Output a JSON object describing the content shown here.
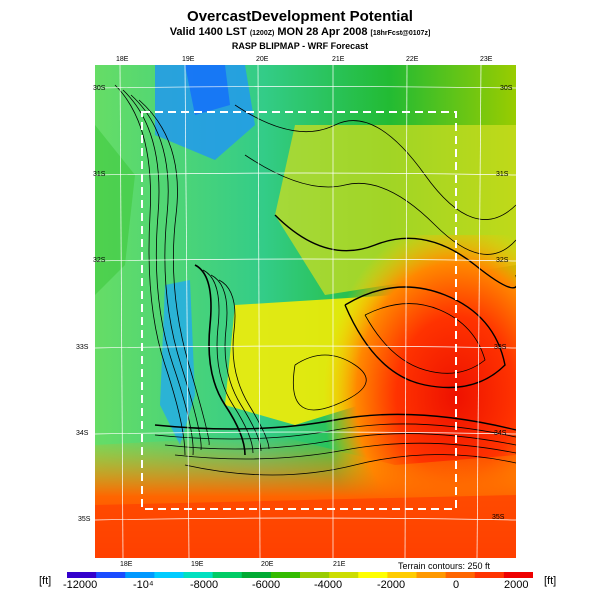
{
  "title": "OvercastDevelopment Potential",
  "subtitle_main": "Valid 1400 LST",
  "subtitle_utc": "(1200Z)",
  "subtitle_date": "MON 28 Apr 2008",
  "subtitle_fcst": "[18hrFcst@0107z]",
  "model_line": "RASP BLIPMAP - WRF Forecast",
  "top_lon_labels": [
    "18E",
    "19E",
    "20E",
    "21E",
    "22E",
    "23E"
  ],
  "bottom_lon_labels": [
    "18E",
    "19E",
    "20E",
    "21E"
  ],
  "left_lat_labels": [
    "30S",
    "31S",
    "32S",
    "33S",
    "34S",
    "35S"
  ],
  "right_lat_labels": [
    "30S",
    "31S",
    "32S",
    "33S",
    "34S",
    "35S"
  ],
  "legend": {
    "unit_left": "[ft]",
    "unit_right": "[ft]",
    "ticks": [
      "-12000",
      "-10⁴",
      "-8000",
      "-6000",
      "-4000",
      "-2000",
      "0",
      "2000"
    ],
    "colors": [
      "#3300cc",
      "#1a4cff",
      "#0099ff",
      "#00ccff",
      "#00e0c0",
      "#00cc66",
      "#00aa33",
      "#33bb00",
      "#99cc00",
      "#ccdd00",
      "#ffff00",
      "#ffcc00",
      "#ff9900",
      "#ff6600",
      "#ff3300",
      "#ee0000"
    ]
  },
  "terrain_note": "Terrain contours: 250 ft",
  "colors": {
    "grid": "#ffffff",
    "contour": "#000000",
    "domain_box": "#ffffff"
  }
}
